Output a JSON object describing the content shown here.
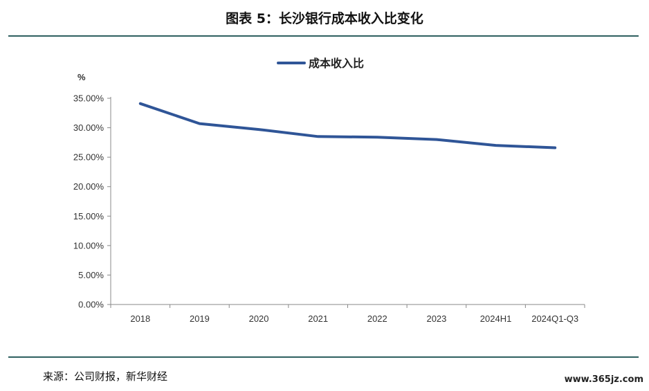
{
  "page": {
    "title": "图表 5：长沙银行成本收入比变化",
    "source": "来源：公司财报，新华财经",
    "watermark": "www.365jz.com"
  },
  "chart_data": {
    "type": "line",
    "title": "",
    "xlabel": "",
    "ylabel": "%",
    "categories": [
      "2018",
      "2019",
      "2020",
      "2021",
      "2022",
      "2023",
      "2024H1",
      "2024Q1-Q3"
    ],
    "series": [
      {
        "name": "成本收入比",
        "color": "#2f5597",
        "values": [
          34.1,
          30.7,
          29.7,
          28.5,
          28.4,
          28.0,
          27.0,
          26.6
        ]
      }
    ],
    "ylim": [
      0,
      35
    ],
    "yticks": [
      0,
      5,
      10,
      15,
      20,
      25,
      30,
      35
    ],
    "ytick_labels": [
      "0.00%",
      "5.00%",
      "10.00%",
      "15.00%",
      "20.00%",
      "25.00%",
      "30.00%",
      "35.00%"
    ],
    "grid": false,
    "legend": "top-center"
  }
}
